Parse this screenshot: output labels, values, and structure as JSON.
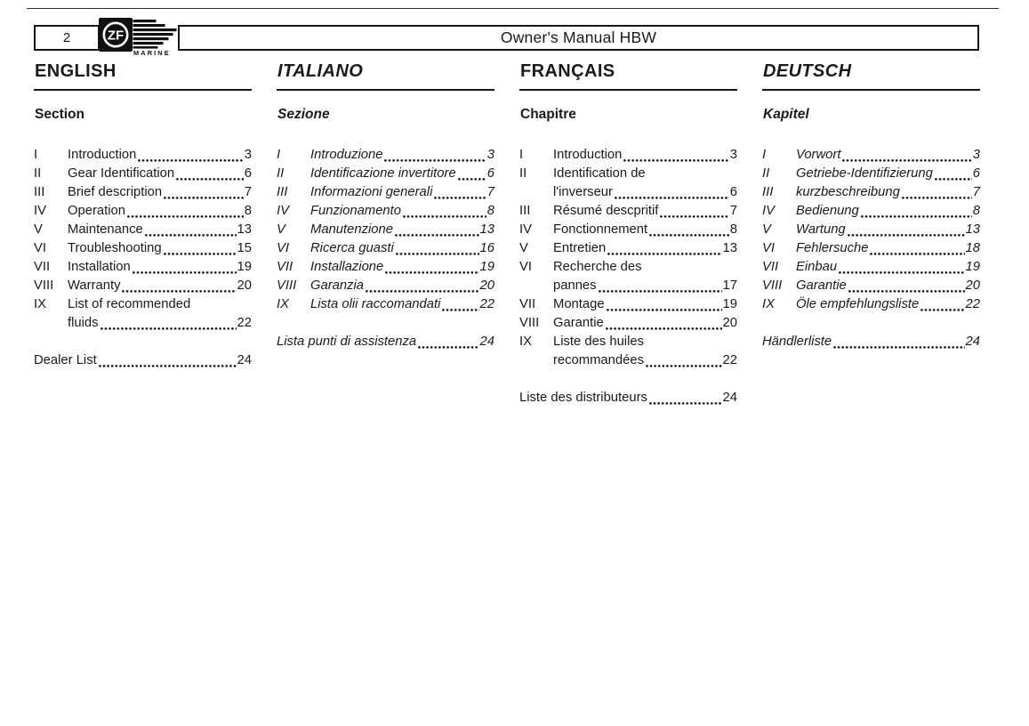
{
  "header": {
    "page_number": "2",
    "title": "Owner's Manual HBW",
    "logo_zf": "ZF",
    "logo_marine": "MARINE"
  },
  "columns": [
    {
      "id": "english",
      "language": "ENGLISH",
      "section_label": "Section",
      "entries": [
        {
          "num": "I",
          "lines": [
            "Introduction"
          ],
          "page": "3"
        },
        {
          "num": "II",
          "lines": [
            "Gear Identification"
          ],
          "page": "6"
        },
        {
          "num": "III",
          "lines": [
            "Brief description"
          ],
          "page": "7"
        },
        {
          "num": "IV",
          "lines": [
            "Operation"
          ],
          "page": "8"
        },
        {
          "num": "V",
          "lines": [
            "Maintenance"
          ],
          "page": "13"
        },
        {
          "num": "VI",
          "lines": [
            "Troubleshooting"
          ],
          "page": "15"
        },
        {
          "num": "VII",
          "lines": [
            "Installation"
          ],
          "page": "19"
        },
        {
          "num": "VIII",
          "lines": [
            "Warranty"
          ],
          "page": "20"
        },
        {
          "num": "IX",
          "lines": [
            "List of recommended",
            "fluids"
          ],
          "page": "22"
        }
      ],
      "footer": {
        "label": "Dealer List",
        "page": "24"
      }
    },
    {
      "id": "italiano",
      "language": "ITALIANO",
      "section_label": "Sezione",
      "entries": [
        {
          "num": "I",
          "lines": [
            "Introduzione"
          ],
          "page": "3"
        },
        {
          "num": "II",
          "lines": [
            "Identificazione invertitore"
          ],
          "page": "6"
        },
        {
          "num": "III",
          "lines": [
            "Informazioni generali"
          ],
          "page": "7"
        },
        {
          "num": "IV",
          "lines": [
            "Funzionamento"
          ],
          "page": "8"
        },
        {
          "num": "V",
          "lines": [
            "Manutenzione"
          ],
          "page": "13"
        },
        {
          "num": "VI",
          "lines": [
            "Ricerca guasti"
          ],
          "page": "16"
        },
        {
          "num": "VII",
          "lines": [
            "Installazione"
          ],
          "page": "19"
        },
        {
          "num": "VIII",
          "lines": [
            "Garanzia"
          ],
          "page": "20"
        },
        {
          "num": "IX",
          "lines": [
            "Lista olii raccomandati"
          ],
          "page": "22"
        }
      ],
      "footer": {
        "label": "Lista punti di assistenza",
        "page": "24"
      }
    },
    {
      "id": "francais",
      "language": "FRANÇAIS",
      "section_label": "Chapitre",
      "entries": [
        {
          "num": "I",
          "lines": [
            "Introduction"
          ],
          "page": "3"
        },
        {
          "num": "II",
          "lines": [
            "Identification de",
            "l'inverseur"
          ],
          "page": "6"
        },
        {
          "num": "III",
          "lines": [
            "Résumé descpritif"
          ],
          "page": "7"
        },
        {
          "num": "IV",
          "lines": [
            "Fonctionnement"
          ],
          "page": "8"
        },
        {
          "num": "V",
          "lines": [
            "Entretien"
          ],
          "page": "13"
        },
        {
          "num": "VI",
          "lines": [
            "Recherche des",
            "pannes"
          ],
          "page": "17"
        },
        {
          "num": "VII",
          "lines": [
            "Montage"
          ],
          "page": "19"
        },
        {
          "num": "VIII",
          "lines": [
            "Garantie"
          ],
          "page": "20"
        },
        {
          "num": "IX",
          "lines": [
            "Liste des huiles",
            "recommandées"
          ],
          "page": "22"
        }
      ],
      "footer": {
        "label": "Liste des distributeurs",
        "page": "24"
      }
    },
    {
      "id": "deutsch",
      "language": "DEUTSCH",
      "section_label": "Kapitel",
      "entries": [
        {
          "num": "I",
          "lines": [
            "Vorwort"
          ],
          "page": "3"
        },
        {
          "num": "II",
          "lines": [
            "Getriebe-Identifizierung"
          ],
          "page": "6"
        },
        {
          "num": "III",
          "lines": [
            "kurzbeschreibung"
          ],
          "page": "7"
        },
        {
          "num": "IV",
          "lines": [
            "Bedienung"
          ],
          "page": "8"
        },
        {
          "num": "V",
          "lines": [
            "Wartung"
          ],
          "page": "13"
        },
        {
          "num": "VI",
          "lines": [
            "Fehlersuche"
          ],
          "page": "18"
        },
        {
          "num": "VII",
          "lines": [
            "Einbau"
          ],
          "page": "19"
        },
        {
          "num": "VIII",
          "lines": [
            "Garantie"
          ],
          "page": "20"
        },
        {
          "num": "IX",
          "lines": [
            "Öle empfehlungsliste"
          ],
          "page": "22"
        }
      ],
      "footer": {
        "label": "Händlerliste",
        "page": "24"
      }
    }
  ]
}
